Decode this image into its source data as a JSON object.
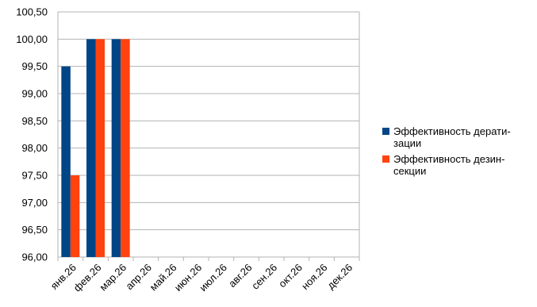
{
  "chart_data": {
    "type": "bar",
    "title": "",
    "xlabel": "",
    "ylabel": "",
    "categories": [
      "янв.26",
      "фев.26",
      "мар.26",
      "апр.26",
      "май.26",
      "июн.26",
      "июл.26",
      "авг.26",
      "сен.26",
      "окт.26",
      "ноя.26",
      "дек.26"
    ],
    "series": [
      {
        "name": "Эффективность дерати-\nзации",
        "color": "#004586",
        "values": [
          99.5,
          100.0,
          100.0,
          null,
          null,
          null,
          null,
          null,
          null,
          null,
          null,
          null
        ]
      },
      {
        "name": "Эффективность дезин-\nсекции",
        "color": "#ff420e",
        "values": [
          97.5,
          100.0,
          100.0,
          null,
          null,
          null,
          null,
          null,
          null,
          null,
          null,
          null
        ]
      }
    ],
    "ylim": [
      96.0,
      100.5
    ],
    "yticks": [
      "96,00",
      "96,50",
      "97,00",
      "97,50",
      "98,00",
      "98,50",
      "99,00",
      "99,50",
      "100,00",
      "100,50"
    ],
    "grid": true,
    "legend_position": "right"
  }
}
